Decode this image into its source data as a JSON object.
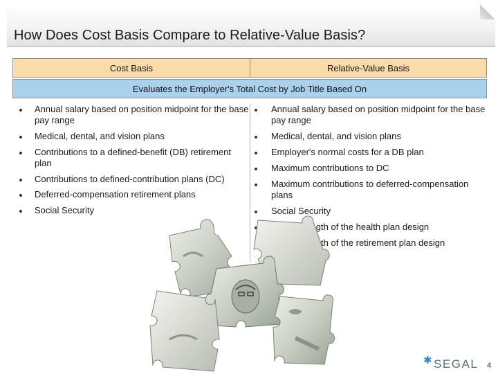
{
  "slide": {
    "title": "How Does Cost Basis Compare to Relative-Value Basis?",
    "page_number": "4"
  },
  "table": {
    "header_left": "Cost Basis",
    "header_right": "Relative-Value Basis",
    "band": "Evaluates the Employer's Total Cost by Job Title Based On"
  },
  "left_items": [
    "Annual salary based on position midpoint for the base pay range",
    "Medical, dental, and vision plans",
    "Contributions to a defined-benefit (DB) retirement plan",
    "Contributions to defined-contribution plans (DC)",
    "Deferred-compensation retirement plans",
    "Social Security"
  ],
  "right_items": [
    "Annual salary based on position midpoint for the base pay range",
    "Medical, dental, and vision plans",
    "Employer's normal costs for a DB plan",
    "Maximum contributions to DC",
    "Maximum contributions to deferred-compensation plans",
    "Social Security",
    "Value/strength of the health plan design",
    "Value/strength of the retirement plan design"
  ],
  "logo": {
    "text": "SEGAL",
    "icon": "asterisk-star-icon"
  },
  "image": {
    "subject": "puzzle-pieces-money-image"
  }
}
